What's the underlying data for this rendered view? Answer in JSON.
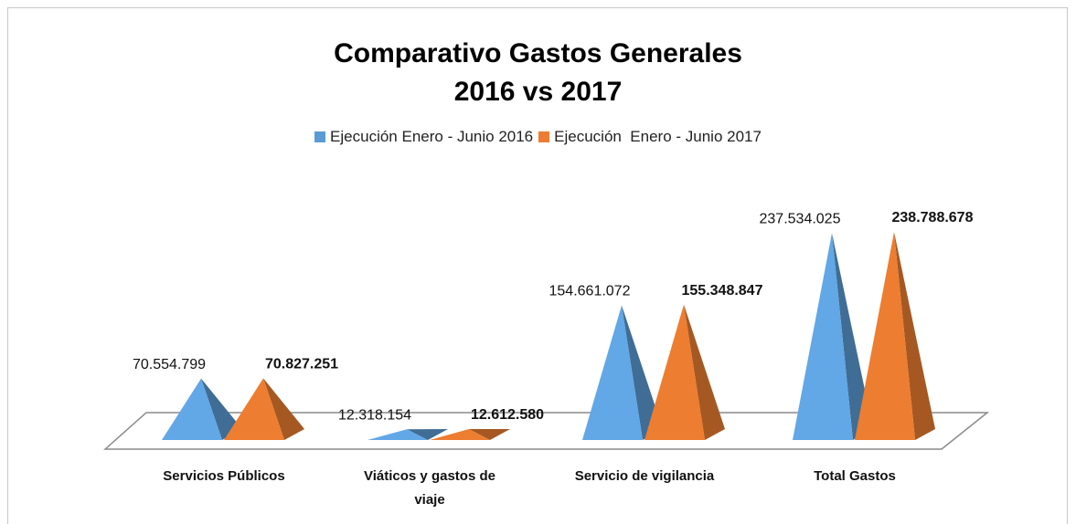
{
  "chart_data": {
    "type": "pyramid3d",
    "title": "Comparativo Gastos Generales\n2016 vs 2017",
    "categories": [
      "Servicios Públicos",
      "Viáticos y gastos de viaje",
      "Servicio de vigilancia",
      "Total Gastos"
    ],
    "series": [
      {
        "name": "Ejecución Enero - Junio 2016",
        "color": "#5b9bd5",
        "values": [
          70554799,
          12318154,
          154661072,
          237534025
        ],
        "value_labels": [
          "70.554.799",
          "12.318.154",
          "154.661.072",
          "237.534.025"
        ]
      },
      {
        "name": "Ejecución  Enero - Junio 2017",
        "color": "#ed7d31",
        "values": [
          70827251,
          12612580,
          155348847,
          238788678
        ],
        "value_labels": [
          "70.827.251",
          "12.612.580",
          "155.348.847",
          "238.788.678"
        ]
      }
    ],
    "legend": "top"
  }
}
